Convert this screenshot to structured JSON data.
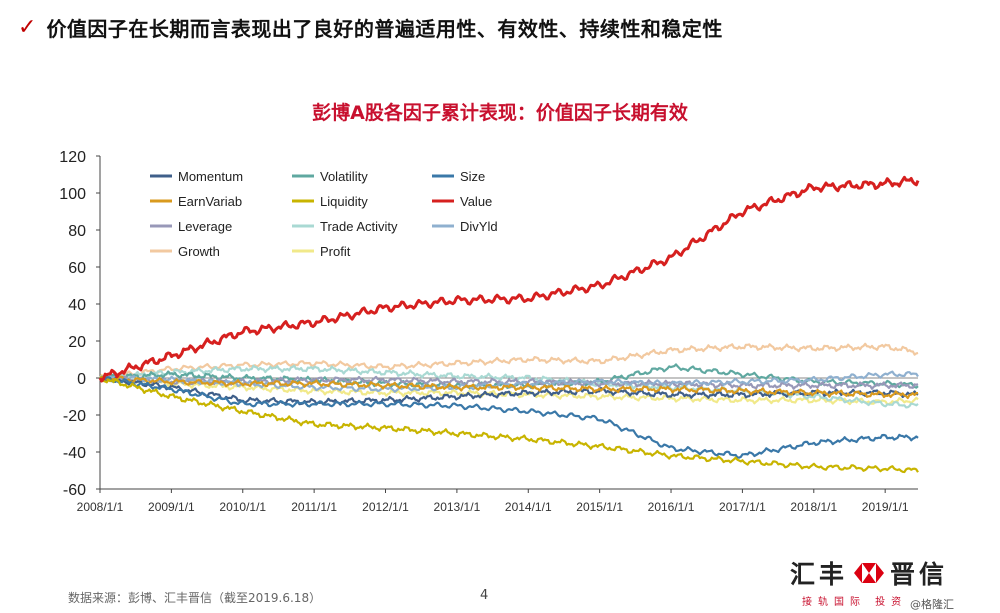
{
  "header": {
    "check_icon": "checkmark-icon",
    "title": "价值因子在长期而言表现出了良好的普遍适用性、有效性、持续性和稳定性"
  },
  "chart_title": "彭博A股各因子累计表现：价值因子长期有效",
  "footer": {
    "source": "数据来源：彭博、汇丰晋信（截至2019.6.18）",
    "page": "4"
  },
  "logo": {
    "left_text": "汇丰",
    "right_text": "晋信",
    "subtitle": "接轨国际 投资",
    "icon": "hsbc-hexagon-icon"
  },
  "watermark": "@格隆汇",
  "chart_data": {
    "type": "line",
    "ylim": [
      -60,
      120
    ],
    "yticks": [
      -60,
      -40,
      -20,
      0,
      20,
      40,
      60,
      80,
      100,
      120
    ],
    "x_range": [
      "2008-01-01",
      "2019-06-18"
    ],
    "x_ticks": [
      "2008/1/1",
      "2009/1/1",
      "2010/1/1",
      "2011/1/1",
      "2012/1/1",
      "2013/1/1",
      "2014/1/1",
      "2015/1/1",
      "2016/1/1",
      "2017/1/1",
      "2018/1/1",
      "2019/1/1"
    ],
    "x": [
      2008.0,
      2009.0,
      2010.0,
      2011.0,
      2012.0,
      2013.0,
      2014.0,
      2015.0,
      2016.0,
      2017.0,
      2018.0,
      2019.0,
      2019.46
    ],
    "legend_position": "top-left",
    "series": [
      {
        "name": "Momentum",
        "color": "#3f5f8a",
        "values": [
          0,
          -5,
          -12,
          -13,
          -12,
          -10,
          -8,
          -7,
          -9,
          -9,
          -8,
          -8,
          -9
        ]
      },
      {
        "name": "Volatility",
        "color": "#5fa8a0",
        "values": [
          0,
          2,
          0,
          -1,
          -3,
          -4,
          -4,
          -2,
          6,
          2,
          -2,
          -3,
          -4
        ]
      },
      {
        "name": "Size",
        "color": "#3a78a8",
        "values": [
          0,
          -6,
          -14,
          -14,
          -14,
          -15,
          -18,
          -22,
          -38,
          -42,
          -35,
          -32,
          -32
        ]
      },
      {
        "name": "EarnVariab",
        "color": "#d99a1e",
        "values": [
          0,
          -2,
          -3,
          -3,
          -4,
          -5,
          -5,
          -6,
          -6,
          -7,
          -8,
          -9,
          -9
        ]
      },
      {
        "name": "Liquidity",
        "color": "#c8b400",
        "values": [
          0,
          -10,
          -18,
          -25,
          -27,
          -30,
          -33,
          -37,
          -42,
          -45,
          -48,
          -49,
          -50
        ]
      },
      {
        "name": "Value",
        "color": "#d6201f",
        "values": [
          0,
          12,
          25,
          30,
          38,
          42,
          43,
          50,
          65,
          90,
          103,
          105,
          107
        ]
      },
      {
        "name": "Leverage",
        "color": "#9898b8",
        "values": [
          0,
          -2,
          -2,
          -1,
          -1,
          -2,
          -2,
          -3,
          -3,
          -4,
          -4,
          -4,
          -4
        ]
      },
      {
        "name": "Trade Activity",
        "color": "#a9d9d3",
        "values": [
          0,
          3,
          5,
          5,
          3,
          1,
          0,
          -3,
          -5,
          -7,
          -10,
          -14,
          -15
        ]
      },
      {
        "name": "DivYld",
        "color": "#8fb0cf",
        "values": [
          0,
          -1,
          -3,
          -5,
          -6,
          -5,
          -3,
          -2,
          -3,
          -2,
          -1,
          2,
          2
        ]
      },
      {
        "name": "Growth",
        "color": "#f2c9a0",
        "values": [
          0,
          5,
          7,
          8,
          6,
          8,
          10,
          9,
          15,
          17,
          16,
          17,
          14
        ]
      },
      {
        "name": "Profit",
        "color": "#f1e98a",
        "values": [
          0,
          -3,
          -5,
          -7,
          -8,
          -8,
          -9,
          -10,
          -11,
          -12,
          -12,
          -13,
          -12
        ]
      }
    ]
  }
}
